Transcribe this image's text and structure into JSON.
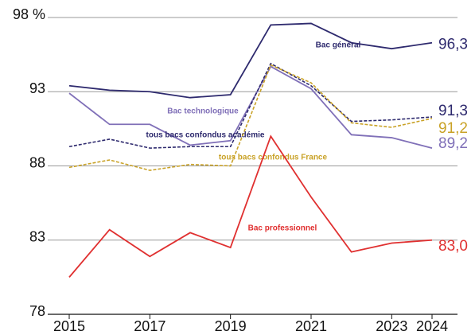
{
  "chart_data": {
    "type": "line",
    "x": [
      2015,
      2016,
      2017,
      2018,
      2019,
      2020,
      2021,
      2022,
      2023,
      2024
    ],
    "xlim": [
      2015,
      2024
    ],
    "xticks": [
      2015,
      2017,
      2019,
      2021,
      2023,
      2024
    ],
    "ylim": [
      78,
      98
    ],
    "yticks": [
      78,
      83,
      88,
      93,
      {
        "value": 98,
        "label": "98 %"
      }
    ],
    "grid": true,
    "series": [
      {
        "name": "Bac général",
        "color": "#2e2a6e",
        "dash": false,
        "values": [
          93.4,
          93.1,
          93.0,
          92.6,
          92.8,
          97.5,
          97.6,
          96.3,
          95.9,
          96.3
        ],
        "value_labels": [
          null,
          null,
          null,
          null,
          null,
          null,
          null,
          null,
          null,
          "96,3"
        ]
      },
      {
        "name": "Bac technologique",
        "color": "#8070b8",
        "dash": false,
        "values": [
          92.9,
          90.8,
          90.8,
          89.4,
          89.7,
          94.7,
          93.2,
          90.1,
          89.9,
          89.2
        ],
        "value_labels": [
          null,
          null,
          null,
          null,
          null,
          null,
          null,
          null,
          null,
          "89,2"
        ]
      },
      {
        "name": "tous bacs confondus académie",
        "color": "#2e2a6e",
        "dash": true,
        "values": [
          89.3,
          89.8,
          89.2,
          89.3,
          89.3,
          94.9,
          93.4,
          91.0,
          91.1,
          91.3
        ],
        "value_labels": [
          null,
          null,
          null,
          null,
          null,
          null,
          null,
          null,
          null,
          "91,3"
        ]
      },
      {
        "name": "tous bacs confondus France",
        "color": "#c9a227",
        "dash": true,
        "values": [
          87.9,
          88.4,
          87.7,
          88.1,
          88.0,
          94.8,
          93.6,
          90.9,
          90.6,
          91.2
        ],
        "value_labels": [
          null,
          null,
          null,
          null,
          null,
          null,
          null,
          null,
          null,
          "91,2"
        ]
      },
      {
        "name": "Bac professionnel",
        "color": "#e03030",
        "dash": false,
        "values": [
          80.5,
          83.7,
          81.9,
          83.5,
          82.5,
          90.0,
          85.9,
          82.2,
          82.8,
          83.0
        ],
        "value_labels": [
          null,
          null,
          null,
          null,
          null,
          null,
          null,
          null,
          null,
          "83,0"
        ]
      }
    ]
  }
}
